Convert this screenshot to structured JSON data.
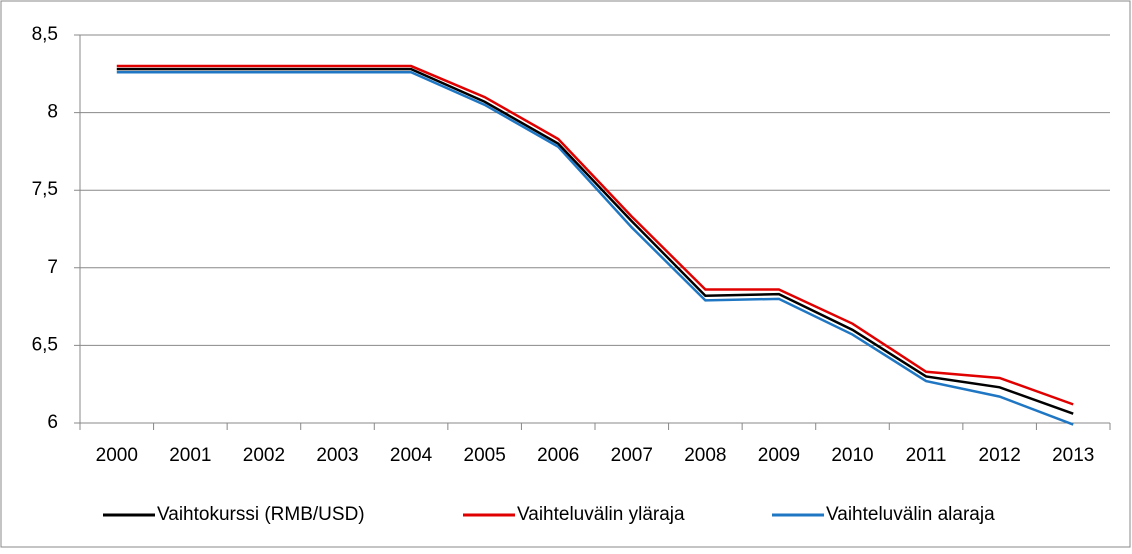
{
  "chart_data": {
    "type": "line",
    "categories": [
      "2000",
      "2001",
      "2002",
      "2003",
      "2004",
      "2005",
      "2006",
      "2007",
      "2008",
      "2009",
      "2010",
      "2011",
      "2012",
      "2013"
    ],
    "series": [
      {
        "name": "Vaihtokurssi (RMB/USD)",
        "color": "#000000",
        "values": [
          8.28,
          8.28,
          8.28,
          8.28,
          8.28,
          8.07,
          7.8,
          7.3,
          6.82,
          6.83,
          6.6,
          6.3,
          6.23,
          6.06
        ]
      },
      {
        "name": "Vaihteluvälin yläraja",
        "color": "#e00000",
        "values": [
          8.3,
          8.3,
          8.3,
          8.3,
          8.3,
          8.1,
          7.83,
          7.33,
          6.86,
          6.86,
          6.64,
          6.33,
          6.29,
          6.12
        ]
      },
      {
        "name": "Vaihteluvälin alaraja",
        "color": "#1f77c4",
        "values": [
          8.26,
          8.26,
          8.26,
          8.26,
          8.26,
          8.05,
          7.78,
          7.26,
          6.79,
          6.8,
          6.57,
          6.27,
          6.17,
          5.99
        ]
      }
    ],
    "ylim": [
      6,
      8.5
    ],
    "yticks": [
      6,
      {
        "value": 6.5,
        "label": "6,5"
      },
      7,
      {
        "value": 7.5,
        "label": "7,5"
      },
      8,
      {
        "value": 8.5,
        "label": "8,5"
      }
    ],
    "grid": true,
    "legend": "bottom"
  }
}
